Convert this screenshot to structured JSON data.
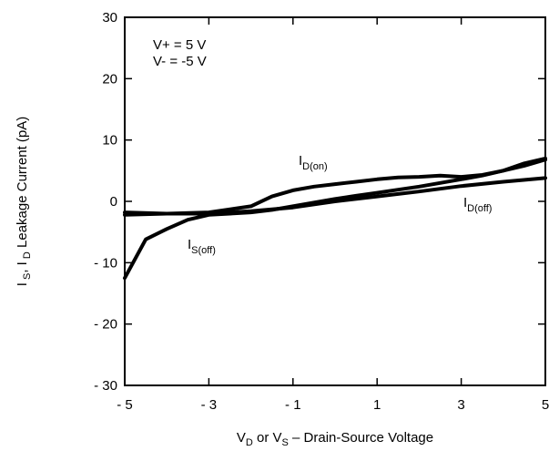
{
  "chart_data": {
    "type": "line",
    "title": "",
    "xlabel": {
      "parts": [
        {
          "text": "V",
          "style": "normal"
        },
        {
          "text": "D",
          "style": "sub"
        },
        {
          "text": " or V",
          "style": "normal"
        },
        {
          "text": "S",
          "style": "sub"
        },
        {
          "text": " – Drain-Source Voltage",
          "style": "normal"
        }
      ]
    },
    "ylabel": {
      "parts": [
        {
          "text": "I",
          "style": "normal"
        },
        {
          "text": " S",
          "style": "sub"
        },
        {
          "text": ", I",
          "style": "normal"
        },
        {
          "text": " D",
          "style": "sub"
        },
        {
          "text": "  Leakage Current (pA)",
          "style": "normal"
        }
      ]
    },
    "xlim": [
      -5,
      5
    ],
    "ylim": [
      -30,
      30
    ],
    "x_ticks": [
      -5,
      -3,
      -1,
      1,
      3,
      5
    ],
    "x_tick_labels": [
      "- 5",
      "- 3",
      "- 1",
      "1",
      "3",
      "5"
    ],
    "y_ticks": [
      30,
      20,
      10,
      0,
      -10,
      -20,
      -30
    ],
    "y_tick_labels": [
      "30",
      "20",
      "10",
      "0",
      "- 10",
      "- 20",
      "- 30"
    ],
    "grid": false,
    "annotations": [
      {
        "text": "V+ = 5 V"
      },
      {
        "text": "V-  = -5 V"
      }
    ],
    "series": [
      {
        "name": "I_D(on)",
        "label_main": "I",
        "label_sub": "D(on)",
        "color": "#000000",
        "x": [
          -5,
          -4,
          -3,
          -2,
          -1.5,
          -1,
          -0.5,
          0,
          0.5,
          1,
          1.5,
          2,
          2.5,
          3,
          3.5,
          4,
          4.5,
          5
        ],
        "y": [
          -2.2,
          -2.0,
          -1.8,
          -0.8,
          0.8,
          1.8,
          2.4,
          2.8,
          3.2,
          3.6,
          3.9,
          4.0,
          4.2,
          4.0,
          4.3,
          5.0,
          6.2,
          7.0
        ]
      },
      {
        "name": "I_D(off)",
        "label_main": "I",
        "label_sub": "D(off)",
        "color": "#000000",
        "x": [
          -5,
          -4,
          -3,
          -2,
          -1,
          0,
          1,
          2,
          3,
          4,
          5
        ],
        "y": [
          -1.8,
          -2.0,
          -2.0,
          -1.6,
          -1.0,
          0.0,
          0.8,
          1.6,
          2.5,
          3.2,
          3.8
        ]
      },
      {
        "name": "I_S(off)",
        "label_main": "I",
        "label_sub": "S(off)",
        "color": "#000000",
        "x": [
          -5,
          -4.5,
          -4,
          -3.5,
          -3,
          -2.5,
          -2,
          -1.5,
          -1,
          -0.5,
          0,
          0.5,
          1,
          1.5,
          2,
          2.5,
          3,
          3.5,
          4,
          4.5,
          5
        ],
        "y": [
          -12.5,
          -6.2,
          -4.5,
          -3.0,
          -2.2,
          -2.0,
          -1.8,
          -1.4,
          -0.8,
          -0.2,
          0.4,
          0.9,
          1.4,
          1.9,
          2.4,
          3.0,
          3.6,
          4.2,
          5.0,
          5.8,
          6.8
        ]
      }
    ]
  }
}
